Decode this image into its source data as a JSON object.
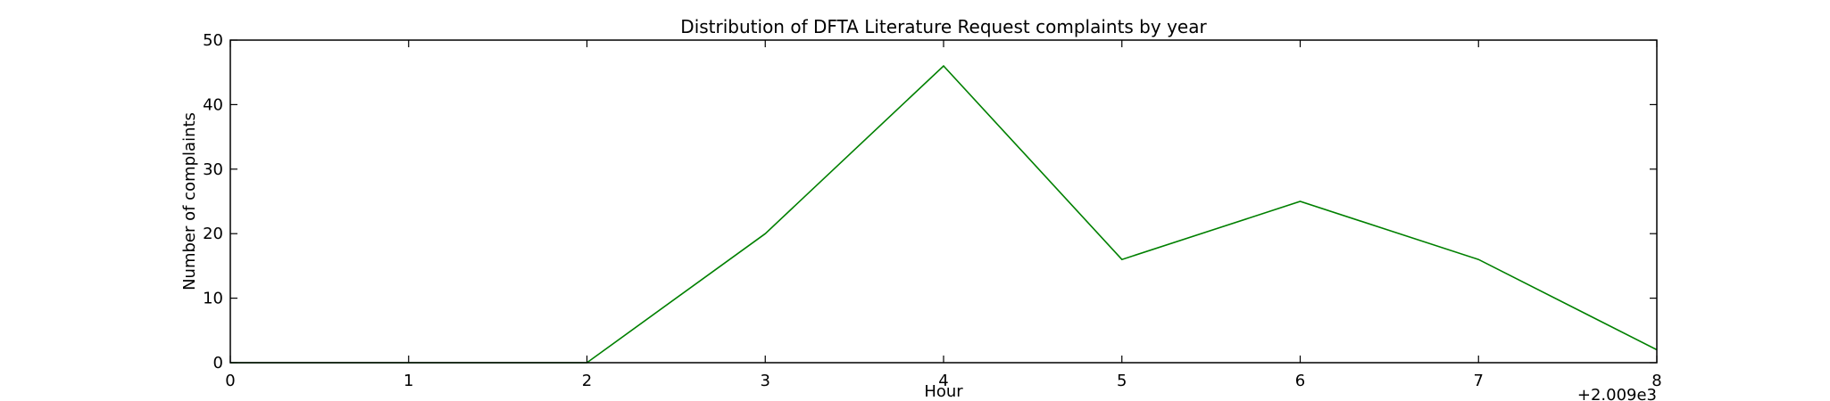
{
  "chart_data": {
    "type": "line",
    "title": "Distribution of  DFTA Literature Request complaints by year",
    "xlabel": "Hour",
    "ylabel": "Number of complaints",
    "x_offset_label": "+2.009e3",
    "x": [
      0,
      1,
      2,
      3,
      4,
      5,
      6,
      7,
      8
    ],
    "xlim": [
      0,
      8
    ],
    "ylim": [
      0,
      50
    ],
    "xticks": [
      "0",
      "1",
      "2",
      "3",
      "4",
      "5",
      "6",
      "7",
      "8"
    ],
    "yticks": [
      "0",
      "10",
      "20",
      "30",
      "40",
      "50"
    ],
    "grid": false,
    "legend": "none",
    "series": [
      {
        "color": "#008000",
        "values": [
          0,
          0,
          0,
          20,
          46,
          16,
          25,
          16,
          2
        ]
      }
    ]
  }
}
